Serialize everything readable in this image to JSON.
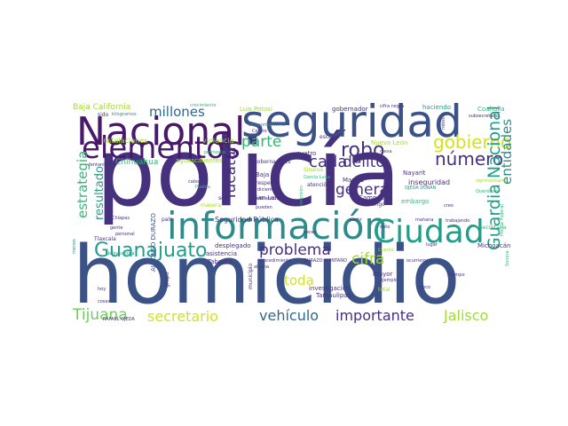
{
  "cloud": {
    "policia": "policía",
    "homicidio": "homicidio",
    "seguridad": "seguridad",
    "nacional": "Nacional",
    "elementos": "elementos",
    "informacion": "información",
    "ciudad": "Ciudad",
    "guanajuato": "Guanajuato",
    "robo": "robo",
    "gobierno": "gobierno",
    "guardia_nacional": "Guardia Nacional",
    "entidades": "entidades",
    "numero": "número",
    "delito": "delito",
    "cada": "cada",
    "general": "general",
    "problema": "problema",
    "cifra": "cifra",
    "toda": "toda",
    "yucatan": "Yucatán",
    "parte": "parte",
    "millones": "millones",
    "estrategia": "estrategia",
    "resultado": "resultado",
    "tijuana": "Tijuana",
    "secretario": "secretario",
    "vehiculo": "vehículo",
    "importante": "importante",
    "jalisco": "Jalisco",
    "baja_california": "Baja California",
    "instalaciones": "instalaciones",
    "violencia": "violencia",
    "chihuahua": "Chihuahua",
    "aguascalientes": "aguascalientes",
    "luis_potosi": "Luis Potosí",
    "gobernador": "gobernador",
    "haciendo": "haciendo",
    "coahuila": "Coahuila",
    "inseguridad": "inseguridad",
    "nuevo_leon": "Nuevo León",
    "nayarit": "Nayarit",
    "embargo": "embargo",
    "campeche": "Campeche",
    "durango": "Durango",
    "marina": "Marina",
    "san_luis": "San Luis",
    "seguridad_publica": "Seguridad Pública",
    "alfonso_durazo": "ALFONSO DURAZO",
    "michoacan": "Michoacán",
    "investigacion": "investigación",
    "tamaulipas": "Tamaulipas",
    "tlaxcala": "Tlaxcala",
    "desplegado": "desplegado",
    "asistencia": "asistencia",
    "tabasco": "Tabasco",
    "gobernadores": "gobernadores",
    "cuatro": "cuatro",
    "respecto": "respecto",
    "atencion": "atención",
    "chiapas": "Chiapas",
    "pais": "país",
    "seis": "seis",
    "manera": "manera",
    "escalon": "escalón",
    "centro": "Centro",
    "baja": "Baja",
    "mayor": "mayor",
    "total": "total",
    "cinco": "cinco",
    "sido": "sido",
    "hoy": "hoy",
    "cosas": "cosas",
    "menos": "menos",
    "grupo": "grupo",
    "municipio": "municipio",
    "queretaro": "Querétaro",
    "sinaloa": "Sinaloa",
    "manana": "mañana",
    "tiempo": "tiempo",
    "partir": "partir",
    "dato": "dato",
    "creo": "creo",
    "durazo_montano": "DURAZO MONTAÑO",
    "trabajando": "trabajando",
    "veces": "veces",
    "ejemplo": "ejemplo",
    "diciembre": "diciembre",
    "cifra_negra": "cifra negra",
    "crecimiento": "crecimiento",
    "kilogramos": "kilogramos",
    "fentanilo": "fentanilo",
    "alguna": "alguna",
    "secretaria": "Secretaría",
    "cuenta": "Cuenta",
    "gente": "gente",
    "personal": "personal",
    "puebla": "Puebla",
    "hablando": "hablando",
    "pueden": "pueden",
    "rafael_ojeda": "RAFAEL OJEDA",
    "ojeda_duran": "OJEDA DURÁN",
    "delincuencia": "delincuencia",
    "representante": "representante",
    "policia_federal": "Policía Federal",
    "sonora": "Sonora",
    "subsecretario": "subsecretario",
    "promedio": "promedio",
    "garcia_luna": "García Luna",
    "inversion": "inversión",
    "cabo": "cabo",
    "mesa": "mesa",
    "procedimiento": "procedimiento",
    "comportamiento": "comportamiento",
    "ocurrieron": "ocurrieron",
    "lugar": "lugar",
    "robos": "robos"
  }
}
